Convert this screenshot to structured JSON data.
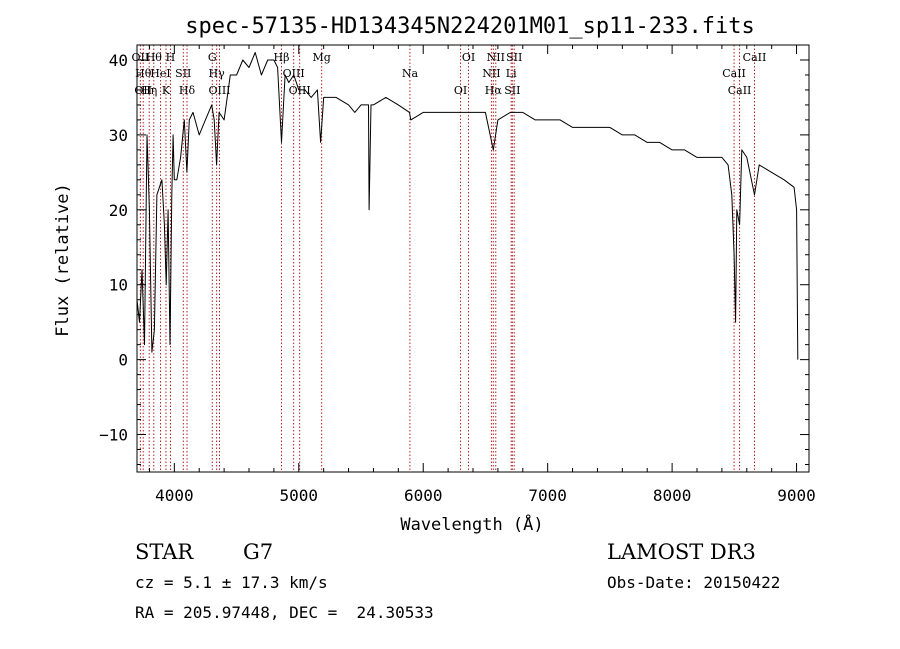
{
  "chart_data": {
    "type": "line",
    "title": "spec-57135-HD134345N224201M01_sp11-233.fits",
    "xlabel": "Wavelength (Å)",
    "ylabel": "Flux (relative)",
    "xlim": [
      3700,
      9100
    ],
    "ylim": [
      -15,
      42
    ],
    "xticks": [
      4000,
      5000,
      6000,
      7000,
      8000,
      9000
    ],
    "yticks": [
      -10,
      0,
      10,
      20,
      30,
      40
    ],
    "grid": false,
    "line_color": "#000000",
    "marker_color": "#b22222",
    "series": [
      {
        "points": [
          [
            3700,
            8
          ],
          [
            3720,
            5
          ],
          [
            3740,
            12
          ],
          [
            3760,
            2
          ],
          [
            3780,
            30
          ],
          [
            3800,
            20
          ],
          [
            3820,
            1
          ],
          [
            3840,
            4
          ],
          [
            3860,
            22
          ],
          [
            3880,
            23
          ],
          [
            3900,
            24
          ],
          [
            3920,
            18
          ],
          [
            3935,
            10
          ],
          [
            3950,
            20
          ],
          [
            3965,
            2
          ],
          [
            3980,
            22
          ],
          [
            3990,
            30
          ],
          [
            4000,
            24
          ],
          [
            4020,
            24
          ],
          [
            4050,
            27
          ],
          [
            4080,
            32
          ],
          [
            4101,
            25
          ],
          [
            4120,
            32
          ],
          [
            4150,
            33
          ],
          [
            4200,
            30
          ],
          [
            4250,
            32
          ],
          [
            4300,
            34
          ],
          [
            4320,
            32
          ],
          [
            4340,
            26
          ],
          [
            4360,
            33
          ],
          [
            4400,
            32
          ],
          [
            4450,
            38
          ],
          [
            4500,
            38
          ],
          [
            4550,
            40
          ],
          [
            4600,
            39
          ],
          [
            4650,
            41
          ],
          [
            4700,
            38
          ],
          [
            4750,
            40
          ],
          [
            4800,
            40
          ],
          [
            4830,
            39
          ],
          [
            4861,
            29
          ],
          [
            4890,
            38
          ],
          [
            4920,
            37
          ],
          [
            4960,
            38
          ],
          [
            5000,
            36
          ],
          [
            5050,
            36
          ],
          [
            5100,
            35
          ],
          [
            5150,
            36
          ],
          [
            5175,
            29
          ],
          [
            5200,
            35
          ],
          [
            5300,
            35
          ],
          [
            5400,
            34
          ],
          [
            5450,
            33
          ],
          [
            5500,
            34
          ],
          [
            5560,
            34
          ],
          [
            5565,
            20
          ],
          [
            5580,
            34
          ],
          [
            5600,
            34
          ],
          [
            5700,
            35
          ],
          [
            5800,
            34
          ],
          [
            5890,
            33
          ],
          [
            5900,
            32
          ],
          [
            6000,
            33
          ],
          [
            6100,
            33
          ],
          [
            6200,
            33
          ],
          [
            6300,
            33
          ],
          [
            6400,
            33
          ],
          [
            6500,
            33
          ],
          [
            6563,
            28
          ],
          [
            6600,
            32
          ],
          [
            6700,
            33
          ],
          [
            6800,
            33
          ],
          [
            6900,
            32
          ],
          [
            7000,
            32
          ],
          [
            7100,
            32
          ],
          [
            7200,
            31
          ],
          [
            7300,
            31
          ],
          [
            7400,
            31
          ],
          [
            7500,
            31
          ],
          [
            7600,
            30
          ],
          [
            7700,
            30
          ],
          [
            7800,
            29
          ],
          [
            7900,
            29
          ],
          [
            8000,
            28
          ],
          [
            8100,
            28
          ],
          [
            8200,
            27
          ],
          [
            8300,
            27
          ],
          [
            8400,
            27
          ],
          [
            8450,
            26
          ],
          [
            8480,
            22
          ],
          [
            8498,
            14
          ],
          [
            8510,
            5
          ],
          [
            8520,
            20
          ],
          [
            8542,
            18
          ],
          [
            8560,
            28
          ],
          [
            8600,
            27
          ],
          [
            8662,
            22
          ],
          [
            8700,
            26
          ],
          [
            8800,
            25
          ],
          [
            8900,
            24
          ],
          [
            8980,
            23
          ],
          [
            9000,
            20
          ],
          [
            9010,
            0
          ]
        ]
      }
    ],
    "line_markers": [
      {
        "x": 3727,
        "labels": [
          "OII"
        ]
      },
      {
        "x": 3750,
        "labels": [
          "Hθ",
          "OII"
        ]
      },
      {
        "x": 3798,
        "labels": [
          "Hη"
        ]
      },
      {
        "x": 3835,
        "labels": [
          "Hθ"
        ]
      },
      {
        "x": 3889,
        "labels": [
          "HeI"
        ]
      },
      {
        "x": 3933,
        "labels": [
          "K"
        ]
      },
      {
        "x": 3969,
        "labels": [
          "H"
        ]
      },
      {
        "x": 4072,
        "labels": [
          "SII"
        ]
      },
      {
        "x": 4102,
        "labels": [
          "Hδ"
        ]
      },
      {
        "x": 4305,
        "labels": [
          "G"
        ]
      },
      {
        "x": 4340,
        "labels": [
          "Hγ"
        ]
      },
      {
        "x": 4363,
        "labels": [
          "OIII"
        ]
      },
      {
        "x": 4861,
        "labels": [
          "Hβ"
        ]
      },
      {
        "x": 4959,
        "labels": [
          "OIII"
        ]
      },
      {
        "x": 5007,
        "labels": [
          "OIII"
        ]
      },
      {
        "x": 5184,
        "labels": [
          "Mg"
        ]
      },
      {
        "x": 5893,
        "labels": [
          "Na"
        ]
      },
      {
        "x": 6300,
        "labels": [
          "OI"
        ]
      },
      {
        "x": 6364,
        "labels": [
          "OI"
        ]
      },
      {
        "x": 6548,
        "labels": [
          "NII"
        ]
      },
      {
        "x": 6563,
        "labels": [
          "Hα"
        ]
      },
      {
        "x": 6583,
        "labels": [
          "NII"
        ]
      },
      {
        "x": 6707,
        "labels": [
          "Li"
        ]
      },
      {
        "x": 6716,
        "labels": [
          "SII"
        ]
      },
      {
        "x": 6731,
        "labels": [
          "SII"
        ]
      },
      {
        "x": 8498,
        "labels": [
          "CaII"
        ]
      },
      {
        "x": 8542,
        "labels": [
          "CaII"
        ]
      },
      {
        "x": 8662,
        "labels": [
          "CaII"
        ]
      }
    ]
  },
  "info": {
    "object_class": "STAR",
    "subclass": "G7",
    "cz": "cz = 5.1 ± 17.3 km/s",
    "radec": "RA = 205.97448, DEC =  24.30533",
    "survey": "LAMOST DR3",
    "obs_date": "Obs-Date: 20150422"
  }
}
